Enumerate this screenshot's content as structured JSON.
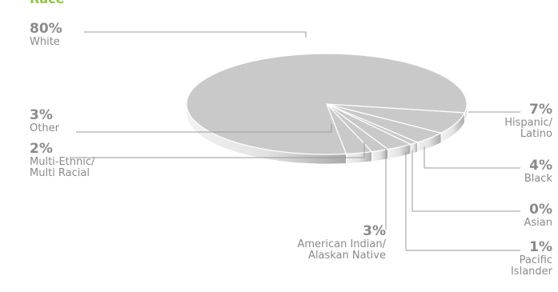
{
  "chart_data": {
    "type": "pie",
    "title": "Race",
    "categories": [
      "Hispanic/\nLatino",
      "Black",
      "Asian",
      "Pacific\nIslander",
      "American Indian/\nAlaskan Native",
      "Multi-Ethnic/\nMulti Racial",
      "Other",
      "White"
    ],
    "values": [
      7,
      4,
      0,
      1,
      3,
      2,
      3,
      80
    ],
    "value_labels": [
      "7%",
      "4%",
      "0%",
      "1%",
      "3%",
      "2%",
      "3%",
      "80%"
    ],
    "color": "#c9c9c9"
  }
}
